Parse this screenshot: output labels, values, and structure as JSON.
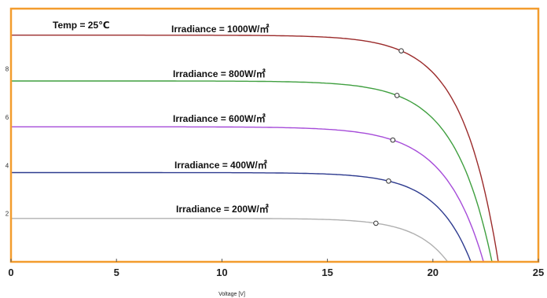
{
  "chart_data": {
    "type": "line",
    "title": "",
    "xlabel": "Voltage [V]",
    "ylabel": "",
    "xlim": [
      0,
      25
    ],
    "ylim": [
      0,
      10.5
    ],
    "x_ticks": [
      "0",
      "5",
      "10",
      "15",
      "20",
      "25"
    ],
    "y_ticks": [
      "2",
      "4",
      "6",
      "8"
    ],
    "grid": false,
    "legend": "none",
    "frame_color": "#f39c2d",
    "annotations": [
      {
        "text": "Temp = 25℃"
      },
      {
        "text": "Irradiance = 1000W/㎡"
      },
      {
        "text": "Irradiance = 800W/㎡"
      },
      {
        "text": "Irradiance = 600W/㎡"
      },
      {
        "text": "Irradiance = 400W/㎡"
      },
      {
        "text": "Irradiance = 200W/㎡"
      }
    ],
    "series": [
      {
        "color": "#9b2b2b",
        "isc": 9.4,
        "voc": 23.1,
        "mpp": [
          18.5,
          8.75
        ]
      },
      {
        "color": "#3f9f3f",
        "isc": 7.5,
        "voc": 22.8,
        "mpp": [
          18.3,
          6.9
        ]
      },
      {
        "color": "#a64cd9",
        "isc": 5.6,
        "voc": 22.4,
        "mpp": [
          18.1,
          5.05
        ]
      },
      {
        "color": "#2e3b8f",
        "isc": 3.7,
        "voc": 21.8,
        "mpp": [
          17.9,
          3.35
        ]
      },
      {
        "color": "#b0b0b0",
        "isc": 1.8,
        "voc": 20.7,
        "mpp": [
          17.3,
          1.6
        ]
      }
    ]
  }
}
